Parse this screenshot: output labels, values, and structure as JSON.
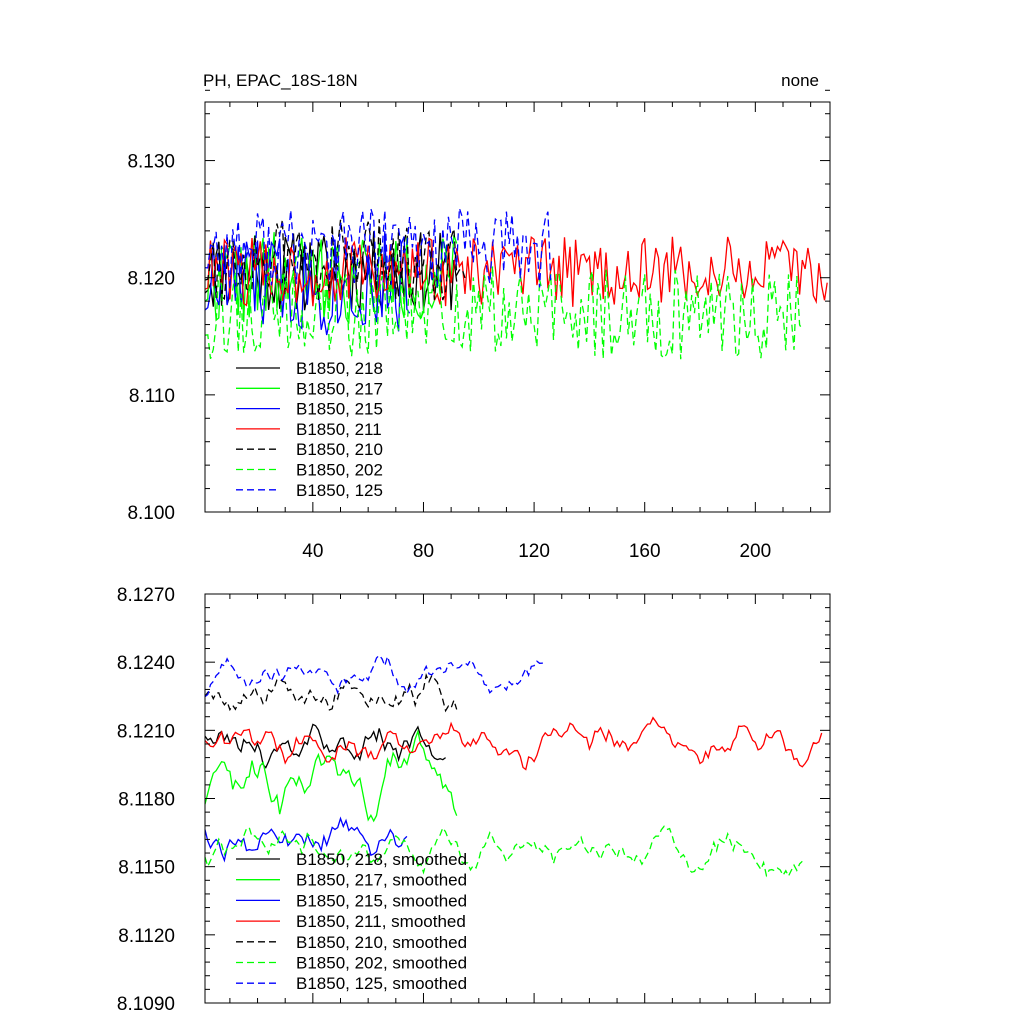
{
  "chart_data": [
    {
      "type": "line",
      "title_left": "PH, EPAC_18S-18N",
      "title_right": "none",
      "xlim": [
        1,
        227
      ],
      "ylim": [
        8.1,
        8.135
      ],
      "x_major_ticks": [
        40,
        80,
        120,
        160,
        200
      ],
      "x_minor_step": 10,
      "x_tick_labels": [
        "40",
        "80",
        "120",
        "160",
        "200"
      ],
      "y_major_ticks": [
        8.1,
        8.11,
        8.12,
        8.13
      ],
      "y_minor_step": 0.002,
      "y_tick_labels": [
        "8.100",
        "8.110",
        "8.120",
        "8.130"
      ],
      "grid": false,
      "legend_placement": "bottom-left",
      "series": [
        {
          "name": "B1850, 218",
          "color": "#000000",
          "dash": "solid",
          "n": 92,
          "base": 8.1205,
          "amp": 0.0035,
          "seed": 11
        },
        {
          "name": "B1850, 217",
          "color": "#00ff00",
          "dash": "solid",
          "n": 92,
          "base": 8.12,
          "amp": 0.004,
          "seed": 22
        },
        {
          "name": "B1850, 215",
          "color": "#0000ff",
          "dash": "solid",
          "n": 75,
          "base": 8.1195,
          "amp": 0.0045,
          "seed": 33
        },
        {
          "name": "B1850, 211",
          "color": "#ff0000",
          "dash": "solid",
          "n": 226,
          "base": 8.1205,
          "amp": 0.003,
          "seed": 44
        },
        {
          "name": "B1850, 210",
          "color": "#000000",
          "dash": "dashed",
          "n": 95,
          "base": 8.1215,
          "amp": 0.0035,
          "seed": 55
        },
        {
          "name": "B1850, 202",
          "color": "#00ff00",
          "dash": "dashed",
          "n": 217,
          "base": 8.117,
          "amp": 0.004,
          "seed": 66
        },
        {
          "name": "B1850, 125",
          "color": "#0000ff",
          "dash": "dashed",
          "n": 126,
          "base": 8.1225,
          "amp": 0.0035,
          "seed": 77
        }
      ]
    },
    {
      "type": "line",
      "xlim": [
        1,
        227
      ],
      "ylim": [
        8.109,
        8.127
      ],
      "x_major_ticks": [
        40,
        80,
        120,
        160,
        200
      ],
      "x_minor_step": 10,
      "y_major_ticks": [
        8.109,
        8.112,
        8.115,
        8.118,
        8.121,
        8.124,
        8.127
      ],
      "y_minor_step": 0.0006,
      "y_tick_labels": [
        "8.1090",
        "8.1120",
        "8.1150",
        "8.1180",
        "8.1210",
        "8.1240",
        "8.1270"
      ],
      "grid": false,
      "legend_placement": "bottom-left",
      "series": [
        {
          "name": "B1850, 218, smoothed",
          "color": "#000000",
          "dash": "solid",
          "n": 88,
          "base": 8.1205,
          "amp": 0.0022,
          "seed": 111
        },
        {
          "name": "B1850, 217, smoothed",
          "color": "#00ff00",
          "dash": "solid",
          "n": 92,
          "base": 8.119,
          "amp": 0.003,
          "seed": 122
        },
        {
          "name": "B1850, 215, smoothed",
          "color": "#0000ff",
          "dash": "solid",
          "n": 74,
          "base": 8.1165,
          "amp": 0.0025,
          "seed": 133
        },
        {
          "name": "B1850, 211, smoothed",
          "color": "#ff0000",
          "dash": "solid",
          "n": 224,
          "base": 8.1205,
          "amp": 0.002,
          "seed": 144
        },
        {
          "name": "B1850, 210, smoothed",
          "color": "#000000",
          "dash": "dashed",
          "n": 92,
          "base": 8.1225,
          "amp": 0.0025,
          "seed": 155
        },
        {
          "name": "B1850, 202, smoothed",
          "color": "#00ff00",
          "dash": "dashed",
          "n": 217,
          "base": 8.1155,
          "amp": 0.0022,
          "seed": 166
        },
        {
          "name": "B1850, 125, smoothed",
          "color": "#0000ff",
          "dash": "dashed",
          "n": 124,
          "base": 8.1235,
          "amp": 0.0018,
          "seed": 177
        }
      ]
    }
  ]
}
